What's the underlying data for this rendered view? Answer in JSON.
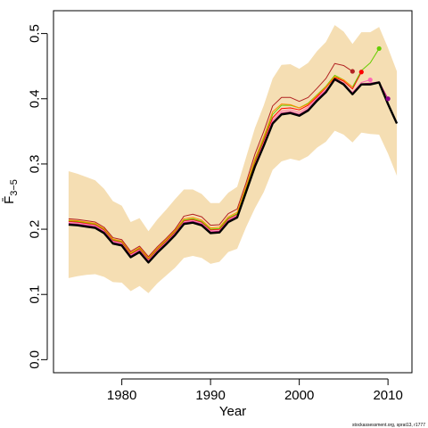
{
  "chart_data": {
    "type": "line",
    "xlabel": "Year",
    "ylabel": "F̄",
    "ylabel_subscript": "3−5",
    "xlim": [
      1972.3,
      2012.7
    ],
    "ylim": [
      -0.02,
      0.535
    ],
    "xticks": [
      1980,
      1990,
      2000,
      2010
    ],
    "yticks": [
      0.0,
      0.1,
      0.2,
      0.3,
      0.4,
      0.5
    ],
    "ytick_labels": [
      "0.0",
      "0.1",
      "0.2",
      "0.3",
      "0.4",
      "0.5"
    ],
    "grid": false,
    "band_color": "#f5deb3",
    "confidence_band": {
      "x": [
        1974,
        1975,
        1976,
        1977,
        1978,
        1979,
        1980,
        1981,
        1982,
        1983,
        1984,
        1985,
        1986,
        1987,
        1988,
        1989,
        1990,
        1991,
        1992,
        1993,
        1994,
        1995,
        1996,
        1997,
        1998,
        1999,
        2000,
        2001,
        2002,
        2003,
        2004,
        2005,
        2006,
        2007,
        2008,
        2009,
        2010,
        2011
      ],
      "upper": [
        0.289,
        0.285,
        0.28,
        0.275,
        0.262,
        0.243,
        0.236,
        0.211,
        0.217,
        0.197,
        0.215,
        0.23,
        0.246,
        0.261,
        0.261,
        0.254,
        0.24,
        0.24,
        0.256,
        0.265,
        0.31,
        0.355,
        0.39,
        0.431,
        0.452,
        0.453,
        0.446,
        0.455,
        0.473,
        0.487,
        0.513,
        0.503,
        0.484,
        0.502,
        0.502,
        0.51,
        0.478,
        0.442
      ],
      "lower": [
        0.125,
        0.128,
        0.13,
        0.131,
        0.127,
        0.119,
        0.118,
        0.105,
        0.113,
        0.102,
        0.117,
        0.129,
        0.141,
        0.156,
        0.159,
        0.156,
        0.147,
        0.15,
        0.165,
        0.17,
        0.203,
        0.232,
        0.257,
        0.291,
        0.304,
        0.308,
        0.305,
        0.312,
        0.325,
        0.334,
        0.351,
        0.345,
        0.333,
        0.348,
        0.346,
        0.345,
        0.316,
        0.282
      ]
    },
    "series": [
      {
        "color": "#000000",
        "width": 2.4,
        "x": [
          1974,
          1975,
          1976,
          1977,
          1978,
          1979,
          1980,
          1981,
          1982,
          1983,
          1984,
          1985,
          1986,
          1987,
          1988,
          1989,
          1990,
          1991,
          1992,
          1993,
          1994,
          1995,
          1996,
          1997,
          1998,
          1999,
          2000,
          2001,
          2002,
          2003,
          2004,
          2005,
          2006,
          2007,
          2008,
          2009,
          2010,
          2011
        ],
        "values": [
          0.207,
          0.206,
          0.204,
          0.202,
          0.194,
          0.178,
          0.175,
          0.157,
          0.165,
          0.149,
          0.164,
          0.177,
          0.191,
          0.208,
          0.21,
          0.206,
          0.194,
          0.195,
          0.211,
          0.218,
          0.257,
          0.296,
          0.328,
          0.362,
          0.376,
          0.378,
          0.374,
          0.382,
          0.397,
          0.41,
          0.43,
          0.422,
          0.407,
          0.422,
          0.422,
          0.425,
          0.392,
          0.362
        ]
      },
      {
        "color": "#c71585",
        "width": 1.0,
        "x": [
          1974,
          1975,
          1976,
          1977,
          1978,
          1979,
          1980,
          1981,
          1982,
          1983,
          1984,
          1985,
          1986,
          1987,
          1988,
          1989,
          1990,
          1991,
          1992,
          1993,
          1994,
          1995,
          1996,
          1997,
          1998,
          1999,
          2000,
          2001,
          2002,
          2003,
          2004,
          2005,
          2006,
          2007,
          2008,
          2009,
          2010
        ],
        "values": [
          0.209,
          0.208,
          0.206,
          0.204,
          0.196,
          0.18,
          0.177,
          0.159,
          0.167,
          0.151,
          0.166,
          0.179,
          0.193,
          0.21,
          0.212,
          0.208,
          0.196,
          0.197,
          0.213,
          0.22,
          0.259,
          0.298,
          0.33,
          0.364,
          0.378,
          0.38,
          0.376,
          0.384,
          0.399,
          0.412,
          0.431,
          0.424,
          0.409,
          0.423,
          0.424,
          0.426,
          0.4
        ]
      },
      {
        "color": "#ff69b4",
        "width": 1.0,
        "x": [
          1974,
          1975,
          1976,
          1977,
          1978,
          1979,
          1980,
          1981,
          1982,
          1983,
          1984,
          1985,
          1986,
          1987,
          1988,
          1989,
          1990,
          1991,
          1992,
          1993,
          1994,
          1995,
          1996,
          1997,
          1998,
          1999,
          2000,
          2001,
          2002,
          2003,
          2004,
          2005,
          2006,
          2007,
          2008
        ],
        "values": [
          0.211,
          0.21,
          0.208,
          0.206,
          0.198,
          0.182,
          0.179,
          0.161,
          0.169,
          0.153,
          0.168,
          0.181,
          0.195,
          0.212,
          0.214,
          0.21,
          0.198,
          0.199,
          0.215,
          0.222,
          0.261,
          0.3,
          0.333,
          0.367,
          0.381,
          0.383,
          0.379,
          0.387,
          0.401,
          0.414,
          0.428,
          0.422,
          0.41,
          0.425,
          0.429
        ]
      },
      {
        "color": "#ff0000",
        "width": 1.0,
        "x": [
          1974,
          1975,
          1976,
          1977,
          1978,
          1979,
          1980,
          1981,
          1982,
          1983,
          1984,
          1985,
          1986,
          1987,
          1988,
          1989,
          1990,
          1991,
          1992,
          1993,
          1994,
          1995,
          1996,
          1997,
          1998,
          1999,
          2000,
          2001,
          2002,
          2003,
          2004,
          2005,
          2006,
          2007
        ],
        "values": [
          0.212,
          0.211,
          0.209,
          0.207,
          0.199,
          0.183,
          0.18,
          0.162,
          0.17,
          0.154,
          0.169,
          0.182,
          0.196,
          0.213,
          0.215,
          0.211,
          0.199,
          0.2,
          0.216,
          0.223,
          0.263,
          0.303,
          0.336,
          0.371,
          0.385,
          0.386,
          0.383,
          0.39,
          0.403,
          0.417,
          0.433,
          0.427,
          0.415,
          0.441
        ]
      },
      {
        "color": "#66cd00",
        "width": 1.0,
        "x": [
          1974,
          1975,
          1976,
          1977,
          1978,
          1979,
          1980,
          1981,
          1982,
          1983,
          1984,
          1985,
          1986,
          1987,
          1988,
          1989,
          1990,
          1991,
          1992,
          1993,
          1994,
          1995,
          1996,
          1997,
          1998,
          1999,
          2000,
          2001,
          2002,
          2003,
          2004,
          2005,
          2006,
          2007,
          2008,
          2009
        ],
        "values": [
          0.213,
          0.212,
          0.21,
          0.208,
          0.2,
          0.184,
          0.181,
          0.163,
          0.171,
          0.155,
          0.17,
          0.183,
          0.197,
          0.214,
          0.216,
          0.212,
          0.2,
          0.201,
          0.217,
          0.224,
          0.264,
          0.305,
          0.339,
          0.376,
          0.39,
          0.39,
          0.386,
          0.393,
          0.406,
          0.419,
          0.436,
          0.429,
          0.418,
          0.443,
          0.455,
          0.477
        ]
      },
      {
        "color": "#ff8c00",
        "width": 1.0,
        "x": [
          1974,
          1975,
          1976,
          1977,
          1978,
          1979,
          1980,
          1981,
          1982,
          1983,
          1984,
          1985,
          1986,
          1987,
          1988,
          1989,
          1990,
          1991,
          1992,
          1993,
          1994,
          1995,
          1996,
          1997,
          1998,
          1999,
          2000,
          2001,
          2002,
          2003,
          2004,
          2005,
          2006
        ],
        "values": [
          0.214,
          0.213,
          0.211,
          0.209,
          0.201,
          0.185,
          0.182,
          0.164,
          0.172,
          0.156,
          0.171,
          0.184,
          0.198,
          0.216,
          0.218,
          0.214,
          0.202,
          0.203,
          0.219,
          0.226,
          0.266,
          0.308,
          0.342,
          0.38,
          0.392,
          0.391,
          0.386,
          0.392,
          0.405,
          0.418,
          0.434,
          0.429,
          0.418
        ]
      },
      {
        "color": "#b22222",
        "width": 1.0,
        "x": [
          1974,
          1975,
          1976,
          1977,
          1978,
          1979,
          1980,
          1981,
          1982,
          1983,
          1984,
          1985,
          1986,
          1987,
          1988,
          1989,
          1990,
          1991,
          1992,
          1993,
          1994,
          1995,
          1996,
          1997,
          1998,
          1999,
          2000,
          2001,
          2002,
          2003,
          2004,
          2005,
          2006
        ],
        "values": [
          0.216,
          0.215,
          0.213,
          0.211,
          0.203,
          0.187,
          0.184,
          0.166,
          0.174,
          0.158,
          0.173,
          0.186,
          0.2,
          0.22,
          0.223,
          0.219,
          0.206,
          0.207,
          0.224,
          0.231,
          0.271,
          0.315,
          0.35,
          0.389,
          0.402,
          0.402,
          0.396,
          0.402,
          0.416,
          0.431,
          0.454,
          0.451,
          0.442
        ]
      }
    ],
    "endpoints": [
      {
        "x": 2006,
        "y": 0.442,
        "color": "#b22222"
      },
      {
        "x": 2007,
        "y": 0.441,
        "color": "#ff0000"
      },
      {
        "x": 2008,
        "y": 0.429,
        "color": "#ff69b4"
      },
      {
        "x": 2009,
        "y": 0.477,
        "color": "#66cd00"
      },
      {
        "x": 2010,
        "y": 0.4,
        "color": "#8b008b"
      }
    ],
    "credit": "stockassessment.org, sprat13, r1777"
  }
}
